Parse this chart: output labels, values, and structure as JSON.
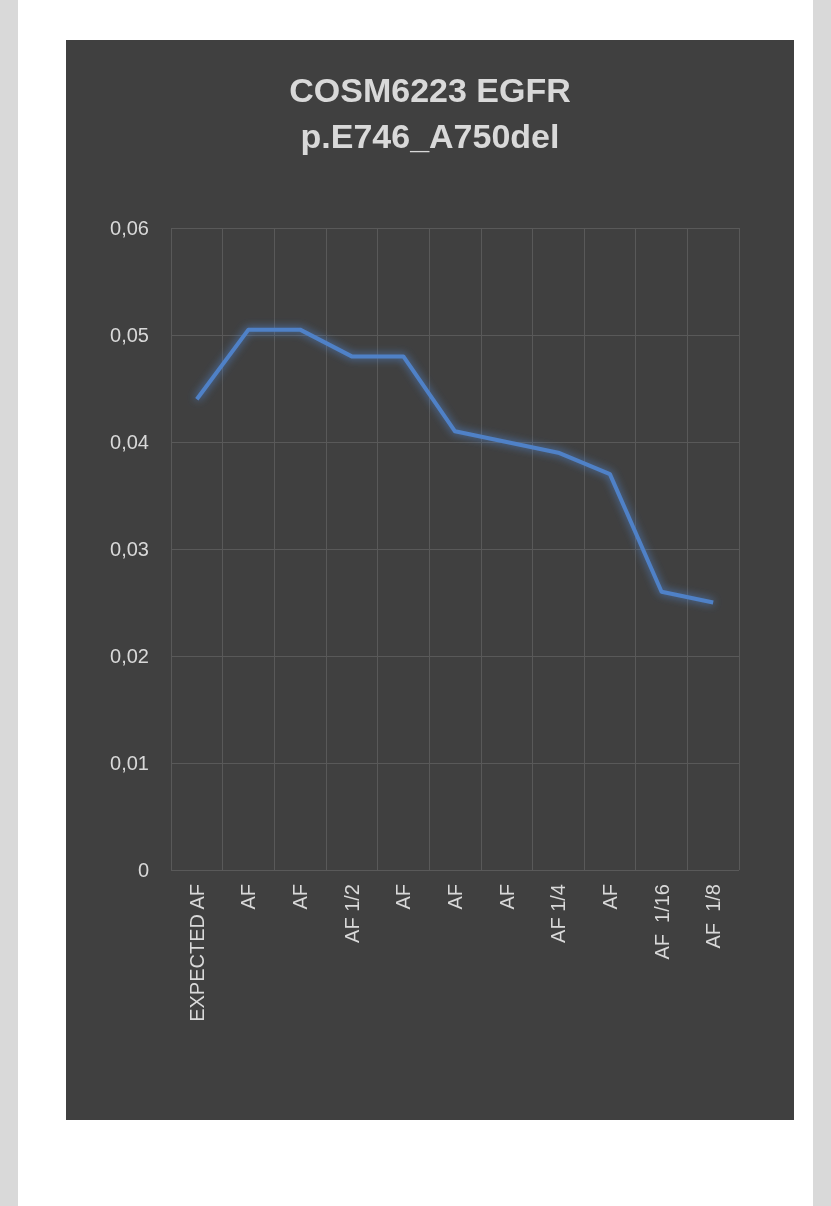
{
  "chart_data": {
    "type": "line",
    "title": "COSM6223 EGFR\np.E746_A750del",
    "categories": [
      "EXPECTED AF",
      "AF",
      "AF",
      "AF 1/2",
      "AF",
      "AF",
      "AF",
      "AF 1/4",
      "AF",
      "AF  1/16",
      "AF  1/8"
    ],
    "series": [
      {
        "color": "#4f81c7",
        "values": [
          0.044,
          0.0505,
          0.0505,
          0.048,
          0.048,
          0.041,
          0.04,
          0.039,
          0.037,
          0.026,
          0.025
        ]
      }
    ],
    "ylim": [
      0,
      0.06
    ],
    "yticks": [
      0,
      {
        "value": 0.01,
        "label": "0,01"
      },
      {
        "value": 0.02,
        "label": "0,02"
      },
      {
        "value": 0.03,
        "label": "0,03"
      },
      {
        "value": 0.04,
        "label": "0,04"
      },
      {
        "value": 0.05,
        "label": "0,05"
      },
      {
        "value": 0.06,
        "label": "0,06"
      }
    ],
    "grid": true,
    "marker": "none",
    "line_style": "solid"
  }
}
